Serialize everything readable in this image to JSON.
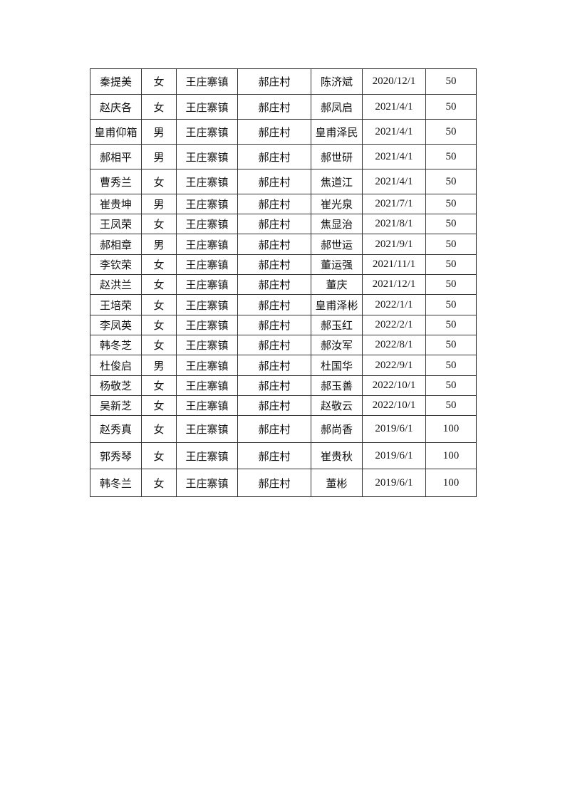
{
  "table": {
    "rows": [
      [
        "秦提美",
        "女",
        "王庄寨镇",
        "郝庄村",
        "陈济斌",
        "2020/12/1",
        "50"
      ],
      [
        "赵庆各",
        "女",
        "王庄寨镇",
        "郝庄村",
        "郝凤启",
        "2021/4/1",
        "50"
      ],
      [
        "皇甫仰箱",
        "男",
        "王庄寨镇",
        "郝庄村",
        "皇甫泽民",
        "2021/4/1",
        "50"
      ],
      [
        "郝相平",
        "男",
        "王庄寨镇",
        "郝庄村",
        "郝世研",
        "2021/4/1",
        "50"
      ],
      [
        "曹秀兰",
        "女",
        "王庄寨镇",
        "郝庄村",
        "焦道江",
        "2021/4/1",
        "50"
      ],
      [
        "崔贵坤",
        "男",
        "王庄寨镇",
        "郝庄村",
        "崔光泉",
        "2021/7/1",
        "50"
      ],
      [
        "王凤荣",
        "女",
        "王庄寨镇",
        "郝庄村",
        "焦显治",
        "2021/8/1",
        "50"
      ],
      [
        "郝相章",
        "男",
        "王庄寨镇",
        "郝庄村",
        "郝世运",
        "2021/9/1",
        "50"
      ],
      [
        "李钦荣",
        "女",
        "王庄寨镇",
        "郝庄村",
        "董运强",
        "2021/11/1",
        "50"
      ],
      [
        "赵洪兰",
        "女",
        "王庄寨镇",
        "郝庄村",
        "董庆",
        "2021/12/1",
        "50"
      ],
      [
        "王培荣",
        "女",
        "王庄寨镇",
        "郝庄村",
        "皇甫泽彬",
        "2022/1/1",
        "50"
      ],
      [
        "李凤英",
        "女",
        "王庄寨镇",
        "郝庄村",
        "郝玉红",
        "2022/2/1",
        "50"
      ],
      [
        "韩冬芝",
        "女",
        "王庄寨镇",
        "郝庄村",
        "郝汝军",
        "2022/8/1",
        "50"
      ],
      [
        "杜俊启",
        "男",
        "王庄寨镇",
        "郝庄村",
        "杜国华",
        "2022/9/1",
        "50"
      ],
      [
        "杨敬芝",
        "女",
        "王庄寨镇",
        "郝庄村",
        "郝玉善",
        "2022/10/1",
        "50"
      ],
      [
        "吴新芝",
        "女",
        "王庄寨镇",
        "郝庄村",
        "赵敬云",
        "2022/10/1",
        "50"
      ],
      [
        "赵秀真",
        "女",
        "王庄寨镇",
        "郝庄村",
        "郝尚香",
        "2019/6/1",
        "100"
      ],
      [
        "郭秀琴",
        "女",
        "王庄寨镇",
        "郝庄村",
        "崔贵秋",
        "2019/6/1",
        "100"
      ],
      [
        "韩冬兰",
        "女",
        "王庄寨镇",
        "郝庄村",
        "董彬",
        "2019/6/1",
        "100"
      ]
    ]
  }
}
